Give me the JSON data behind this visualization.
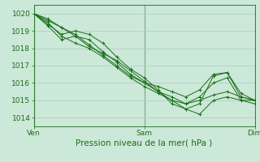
{
  "title": "Pression niveau de la mer( hPa )",
  "xlim": [
    0,
    48
  ],
  "ylim": [
    1013.5,
    1020.5
  ],
  "yticks": [
    1014,
    1015,
    1016,
    1017,
    1018,
    1019,
    1020
  ],
  "xticks": [
    0,
    24,
    48
  ],
  "xtick_labels": [
    "Ven",
    "Sam",
    "Dim"
  ],
  "bg_color": "#cce8d8",
  "grid_color": "#aaccbb",
  "line_color": "#1a6e1a",
  "marker": "+",
  "tick_fontsize": 6.5,
  "label_fontsize": 7.5,
  "lines": [
    {
      "x": [
        0,
        3,
        6,
        9,
        12,
        15,
        18,
        21,
        24,
        27,
        30,
        33,
        36,
        39,
        42,
        45,
        48
      ],
      "y": [
        1020.0,
        1019.6,
        1019.2,
        1018.8,
        1018.2,
        1017.6,
        1017.0,
        1016.4,
        1016.0,
        1015.8,
        1015.5,
        1015.2,
        1015.6,
        1016.5,
        1016.6,
        1015.2,
        1015.0
      ]
    },
    {
      "x": [
        0,
        3,
        6,
        9,
        12,
        15,
        18,
        21,
        24,
        27,
        30,
        33,
        36,
        39,
        42,
        45,
        48
      ],
      "y": [
        1020.0,
        1019.4,
        1018.8,
        1019.0,
        1018.8,
        1018.3,
        1017.5,
        1016.8,
        1016.3,
        1015.6,
        1014.8,
        1014.5,
        1014.2,
        1015.0,
        1015.2,
        1015.0,
        1015.0
      ]
    },
    {
      "x": [
        0,
        3,
        6,
        9,
        12,
        15,
        18,
        21,
        24,
        27,
        30,
        33,
        36,
        39,
        42,
        45,
        48
      ],
      "y": [
        1020.0,
        1019.7,
        1019.2,
        1018.7,
        1018.1,
        1017.7,
        1017.3,
        1016.7,
        1016.1,
        1015.5,
        1015.0,
        1014.8,
        1015.0,
        1015.3,
        1015.5,
        1015.2,
        1015.0
      ]
    },
    {
      "x": [
        0,
        3,
        6,
        9,
        12,
        15,
        18,
        21,
        24,
        27,
        30,
        33,
        36,
        39,
        42,
        45,
        48
      ],
      "y": [
        1020.0,
        1019.5,
        1018.7,
        1018.3,
        1018.0,
        1017.5,
        1016.9,
        1016.3,
        1015.8,
        1015.4,
        1015.0,
        1014.5,
        1014.8,
        1016.4,
        1016.6,
        1015.4,
        1015.0
      ]
    },
    {
      "x": [
        0,
        3,
        6,
        9,
        12,
        15,
        18,
        21,
        24,
        27,
        30,
        33,
        36,
        39,
        42,
        45,
        48
      ],
      "y": [
        1020.0,
        1019.3,
        1018.5,
        1018.7,
        1018.5,
        1017.8,
        1017.2,
        1016.5,
        1016.0,
        1015.5,
        1015.2,
        1014.8,
        1015.2,
        1016.0,
        1016.3,
        1015.0,
        1014.8
      ]
    }
  ]
}
